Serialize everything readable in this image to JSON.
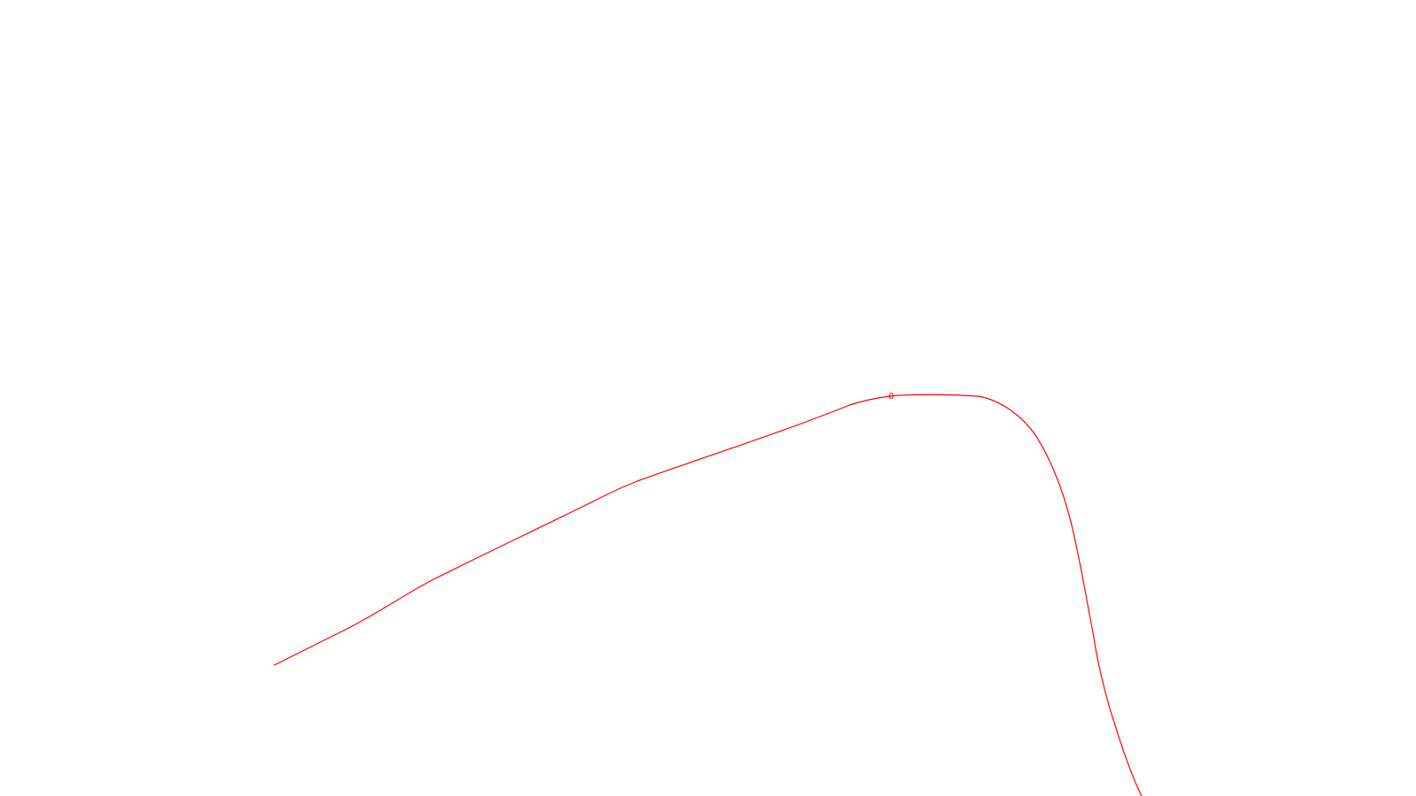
{
  "drawing": {
    "background_color": "#ffffff",
    "curve": {
      "color": "#ff0000"
    },
    "marker": {
      "label": "0",
      "color": "#ff0000"
    }
  }
}
